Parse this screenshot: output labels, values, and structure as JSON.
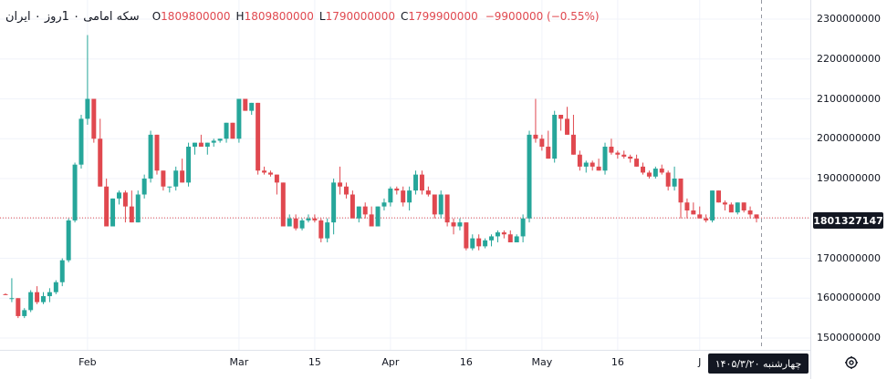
{
  "legend": {
    "symbol": "سکه امامی ۰ 1روز ۰ ایران",
    "open_label": "O",
    "open_value": "1809800000",
    "high_label": "H",
    "high_value": "1809800000",
    "low_label": "L",
    "low_value": "1790000000",
    "close_label": "C",
    "close_value": "1799900000",
    "change": "−9900000 (−0.55%)"
  },
  "current_price_label": "1801327147",
  "cursor_date_label": "چهارشنبه ۱۴۰۵/۳/۲۰",
  "icons": {
    "settings": "gear-icon"
  },
  "colors": {
    "up": "#26a69a",
    "down": "#e0484f",
    "price_line": "#e0484f",
    "label_bg": "#131722"
  },
  "chart_data": {
    "type": "candlestick",
    "y_axis": {
      "ticks": [
        "2300000000",
        "2200000000",
        "2100000000",
        "2000000000",
        "1900000000",
        "1800000000",
        "1700000000",
        "1600000000",
        "1500000000"
      ],
      "tick_values": [
        2300000000,
        2200000000,
        2100000000,
        2000000000,
        1900000000,
        1800000000,
        1700000000,
        1600000000,
        1500000000
      ],
      "range": [
        1480000000,
        2330000000
      ]
    },
    "x_axis": {
      "ticks": [
        "Feb",
        "Mar",
        "15",
        "Apr",
        "16",
        "May",
        "16",
        "J"
      ],
      "tick_index": [
        13,
        37,
        49,
        61,
        73,
        85,
        97,
        110
      ]
    },
    "current_price": 1801327147,
    "grid": true,
    "candles": [
      [
        1610,
        1612,
        1608,
        1608
      ],
      [
        1600,
        1650,
        1590,
        1600
      ],
      [
        1600,
        1600,
        1550,
        1555
      ],
      [
        1555,
        1575,
        1550,
        1570
      ],
      [
        1570,
        1620,
        1565,
        1615
      ],
      [
        1615,
        1630,
        1585,
        1590
      ],
      [
        1590,
        1615,
        1585,
        1605
      ],
      [
        1605,
        1625,
        1590,
        1615
      ],
      [
        1615,
        1645,
        1610,
        1640
      ],
      [
        1640,
        1700,
        1630,
        1695
      ],
      [
        1695,
        1800,
        1690,
        1795
      ],
      [
        1795,
        1940,
        1790,
        1935
      ],
      [
        1935,
        2060,
        1925,
        2050
      ],
      [
        2050,
        2260,
        2035,
        2100
      ],
      [
        2100,
        2100,
        1990,
        2000
      ],
      [
        2000,
        2050,
        1880,
        1880
      ],
      [
        1880,
        1900,
        1780,
        1780
      ],
      [
        1780,
        1850,
        1780,
        1850
      ],
      [
        1850,
        1870,
        1835,
        1865
      ],
      [
        1865,
        1870,
        1790,
        1830
      ],
      [
        1830,
        1870,
        1790,
        1790
      ],
      [
        1790,
        1870,
        1790,
        1860
      ],
      [
        1860,
        1910,
        1850,
        1900
      ],
      [
        1900,
        2020,
        1890,
        2010
      ],
      [
        2010,
        2010,
        1910,
        1920
      ],
      [
        1920,
        1920,
        1870,
        1880
      ],
      [
        1880,
        1880,
        1865,
        1880
      ],
      [
        1880,
        1930,
        1870,
        1920
      ],
      [
        1920,
        1950,
        1890,
        1890
      ],
      [
        1890,
        1990,
        1880,
        1980
      ],
      [
        1980,
        1990,
        1960,
        1990
      ],
      [
        1990,
        2010,
        1980,
        1980
      ],
      [
        1980,
        1990,
        1960,
        1990
      ],
      [
        1990,
        2000,
        1980,
        1995
      ],
      [
        1995,
        2000,
        1990,
        2000
      ],
      [
        2000,
        2040,
        1990,
        2040
      ],
      [
        2040,
        2040,
        2000,
        2000
      ],
      [
        2000,
        2100,
        1990,
        2100
      ],
      [
        2100,
        2100,
        2070,
        2070
      ],
      [
        2070,
        2090,
        2060,
        2090
      ],
      [
        2090,
        2090,
        1910,
        1920
      ],
      [
        1920,
        1930,
        1910,
        1915
      ],
      [
        1915,
        1920,
        1905,
        1910
      ],
      [
        1910,
        1910,
        1860,
        1890
      ],
      [
        1890,
        1890,
        1780,
        1780
      ],
      [
        1780,
        1810,
        1780,
        1800
      ],
      [
        1800,
        1810,
        1770,
        1775
      ],
      [
        1775,
        1800,
        1770,
        1795
      ],
      [
        1795,
        1810,
        1790,
        1800
      ],
      [
        1800,
        1810,
        1790,
        1795
      ],
      [
        1795,
        1800,
        1740,
        1750
      ],
      [
        1750,
        1800,
        1740,
        1790
      ],
      [
        1790,
        1900,
        1760,
        1890
      ],
      [
        1890,
        1930,
        1860,
        1880
      ],
      [
        1880,
        1890,
        1850,
        1860
      ],
      [
        1860,
        1870,
        1820,
        1800
      ],
      [
        1800,
        1830,
        1790,
        1830
      ],
      [
        1830,
        1840,
        1800,
        1810
      ],
      [
        1810,
        1830,
        1780,
        1780
      ],
      [
        1780,
        1830,
        1780,
        1830
      ],
      [
        1830,
        1850,
        1820,
        1840
      ],
      [
        1840,
        1880,
        1830,
        1875
      ],
      [
        1875,
        1880,
        1860,
        1870
      ],
      [
        1870,
        1880,
        1830,
        1840
      ],
      [
        1840,
        1880,
        1820,
        1870
      ],
      [
        1870,
        1920,
        1860,
        1910
      ],
      [
        1910,
        1920,
        1860,
        1870
      ],
      [
        1870,
        1880,
        1855,
        1860
      ],
      [
        1860,
        1860,
        1800,
        1810
      ],
      [
        1810,
        1870,
        1800,
        1860
      ],
      [
        1860,
        1860,
        1780,
        1790
      ],
      [
        1790,
        1800,
        1760,
        1780
      ],
      [
        1780,
        1800,
        1770,
        1790
      ],
      [
        1790,
        1790,
        1720,
        1725
      ],
      [
        1725,
        1760,
        1720,
        1750
      ],
      [
        1750,
        1760,
        1720,
        1730
      ],
      [
        1730,
        1750,
        1725,
        1745
      ],
      [
        1745,
        1760,
        1730,
        1755
      ],
      [
        1755,
        1770,
        1740,
        1765
      ],
      [
        1765,
        1770,
        1750,
        1760
      ],
      [
        1760,
        1770,
        1740,
        1740
      ],
      [
        1740,
        1760,
        1740,
        1755
      ],
      [
        1755,
        1810,
        1740,
        1800
      ],
      [
        1800,
        2020,
        1790,
        2010
      ],
      [
        2010,
        2100,
        1990,
        2000
      ],
      [
        2000,
        2010,
        1970,
        1980
      ],
      [
        1980,
        2020,
        1950,
        1950
      ],
      [
        1950,
        2070,
        1940,
        2060
      ],
      [
        2060,
        2060,
        2020,
        2050
      ],
      [
        2050,
        2080,
        2010,
        2010
      ],
      [
        2010,
        2060,
        1960,
        1960
      ],
      [
        1960,
        1970,
        1920,
        1930
      ],
      [
        1930,
        1945,
        1915,
        1940
      ],
      [
        1940,
        1945,
        1920,
        1930
      ],
      [
        1930,
        1950,
        1920,
        1920
      ],
      [
        1920,
        1990,
        1910,
        1980
      ],
      [
        1980,
        2000,
        1960,
        1965
      ],
      [
        1965,
        1970,
        1950,
        1960
      ],
      [
        1960,
        1970,
        1950,
        1955
      ],
      [
        1955,
        1960,
        1940,
        1950
      ],
      [
        1950,
        1960,
        1930,
        1930
      ],
      [
        1930,
        1940,
        1910,
        1915
      ],
      [
        1915,
        1920,
        1900,
        1905
      ],
      [
        1905,
        1930,
        1900,
        1925
      ],
      [
        1925,
        1935,
        1910,
        1915
      ],
      [
        1915,
        1920,
        1870,
        1880
      ],
      [
        1880,
        1930,
        1870,
        1900
      ],
      [
        1900,
        1900,
        1800,
        1840
      ],
      [
        1840,
        1850,
        1800,
        1820
      ],
      [
        1820,
        1840,
        1810,
        1810
      ],
      [
        1810,
        1830,
        1800,
        1800
      ],
      [
        1800,
        1810,
        1790,
        1795
      ],
      [
        1795,
        1870,
        1790,
        1870
      ],
      [
        1870,
        1870,
        1840,
        1840
      ],
      [
        1840,
        1845,
        1820,
        1835
      ],
      [
        1835,
        1840,
        1820,
        1815
      ],
      [
        1815,
        1840,
        1810,
        1840
      ],
      [
        1840,
        1840,
        1815,
        1820
      ],
      [
        1820,
        1830,
        1800,
        1810
      ],
      [
        1810,
        1810,
        1790,
        1800
      ]
    ]
  }
}
